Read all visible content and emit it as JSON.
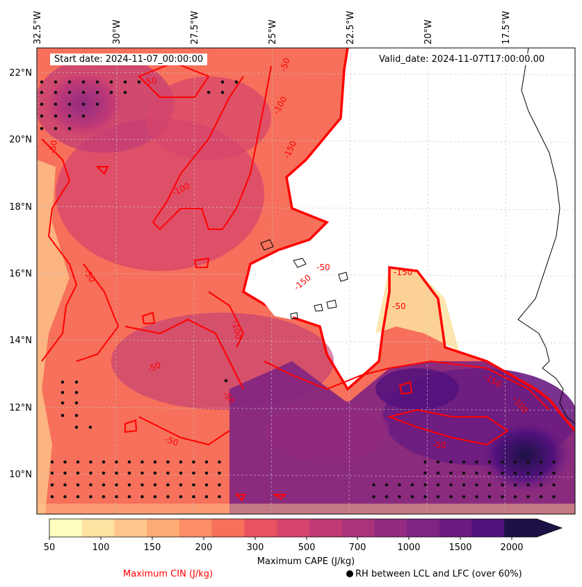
{
  "header": {
    "start_date": "Start date: 2024-11-07_00:00:00",
    "valid_date": "Valid_date: 2024-11-07T17:00:00.00"
  },
  "axes": {
    "lon_labels": [
      "32.5°W",
      "30°W",
      "27.5°W",
      "25°W",
      "22.5°W",
      "20°W",
      "17.5°W"
    ],
    "lat_labels": [
      "22°N",
      "20°N",
      "18°N",
      "16°N",
      "14°N",
      "12°N",
      "10°N"
    ],
    "lon_range": [
      -32.5,
      -15.5
    ],
    "lat_range": [
      9,
      22.7
    ]
  },
  "colorbar": {
    "ticks": [
      "50",
      "100",
      "150",
      "200",
      "300",
      "500",
      "700",
      "1000",
      "1500",
      "2000"
    ],
    "title": "Maximum CAPE (J/kg)",
    "colors": [
      "#fcfdbf",
      "#fde2a1",
      "#fec68a",
      "#feaa74",
      "#fb8d67",
      "#f6705b",
      "#e85362",
      "#d6456c",
      "#c03a76",
      "#ab337c",
      "#932b80",
      "#7f2482",
      "#6a1c81",
      "#51127c",
      "#3b0f70",
      "#1d1147"
    ],
    "extend": "max"
  },
  "legend": {
    "cin_label": "Maximum CIN (J/kg)",
    "cin_color": "#ff0000",
    "rh_label": "RH between LCL and LFC (over 60%)",
    "rh_marker": "dot-icon"
  },
  "contour_labels": [
    "-50",
    "-50",
    "-100",
    "-150",
    "-100",
    "-50",
    "-50",
    "-50",
    "-100",
    "-150",
    "-50",
    "-50",
    "-50",
    "-150",
    "-100",
    "-50",
    "-150",
    "-50"
  ]
}
